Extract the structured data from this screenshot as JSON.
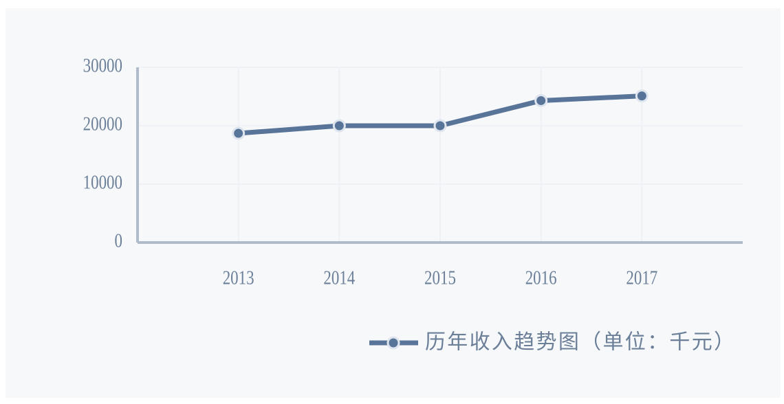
{
  "chart_data": {
    "type": "line",
    "categories": [
      "2013",
      "2014",
      "2015",
      "2016",
      "2017"
    ],
    "series": [
      {
        "name": "历年收入趋势图（单位：千元）",
        "color": "#587498",
        "values": [
          18700,
          20000,
          20000,
          24300,
          25100
        ]
      }
    ],
    "ylim": [
      0,
      30000
    ],
    "yticks": [
      0,
      10000,
      20000,
      30000
    ],
    "grid": true
  }
}
